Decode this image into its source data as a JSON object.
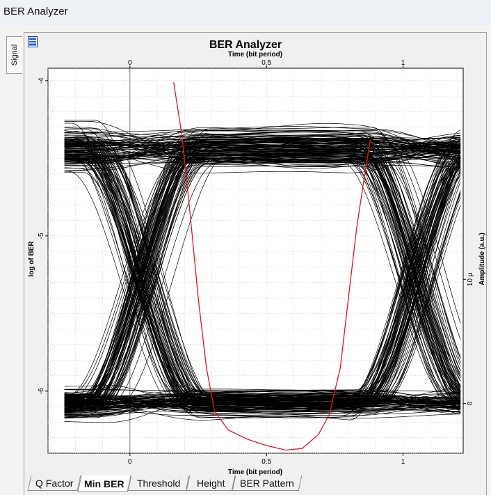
{
  "window": {
    "title": "BER Analyzer"
  },
  "side_tab": {
    "label": "Signal"
  },
  "chart_data": {
    "type": "eye-diagram",
    "title": "BER Analyzer",
    "xlabel_top": "Time (bit period)",
    "xlabel_bottom": "Time (bit period)",
    "ylabel_left": "log of BER",
    "ylabel_right": "Amplitude (a.u.)",
    "x_ticks": [
      "0",
      "0.5",
      "1"
    ],
    "y_ticks_left": [
      "-4",
      "-5",
      "-6"
    ],
    "y_ticks_right": [
      "10 μ",
      "0"
    ],
    "xlim": [
      -0.3,
      1.22
    ],
    "ylim_left": [
      -6.4,
      -3.92
    ],
    "ylim_right": [
      -4e-06,
      2.7e-05
    ],
    "eye": {
      "high_level": 2.05e-05,
      "low_level": 0.0,
      "high_spread": 3.5e-06,
      "low_spread": 2.2e-06,
      "crossing_times": [
        0.05,
        1.05
      ],
      "trace_count": 300
    },
    "ber_curve": {
      "color": "#e8141c",
      "x": [
        0.16,
        0.19,
        0.22,
        0.25,
        0.28,
        0.31,
        0.36,
        0.43,
        0.5,
        0.57,
        0.63,
        0.69,
        0.73,
        0.77,
        0.8,
        0.83,
        0.86,
        0.88
      ],
      "y": [
        -4.01,
        -4.35,
        -4.85,
        -5.4,
        -5.85,
        -6.13,
        -6.25,
        -6.31,
        -6.35,
        -6.38,
        -6.37,
        -6.28,
        -6.15,
        -5.85,
        -5.4,
        -4.95,
        -4.6,
        -4.38
      ]
    }
  },
  "bottom_tabs": [
    {
      "label": "Q Factor"
    },
    {
      "label": "Min BER"
    },
    {
      "label": "Threshold"
    },
    {
      "label": "Height"
    },
    {
      "label": "BER Pattern"
    }
  ],
  "active_tab": "Min BER"
}
